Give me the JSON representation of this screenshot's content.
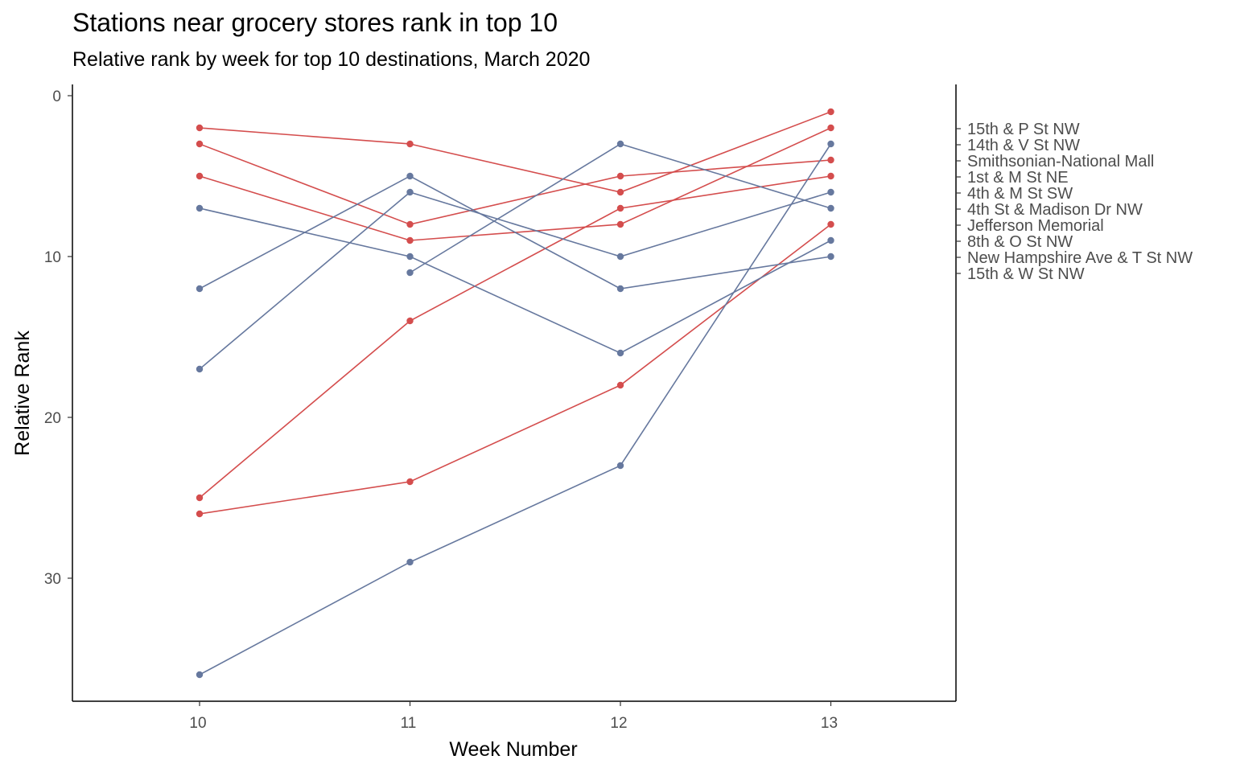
{
  "chart_data": {
    "type": "line",
    "title": "Stations near grocery stores rank in top 10",
    "subtitle": "Relative rank by week for top 10 destinations, March 2020",
    "xlabel": "Week Number",
    "ylabel": "Relative Rank",
    "x": [
      10,
      11,
      12,
      13
    ],
    "x_ticks": [
      "10",
      "11",
      "12",
      "13"
    ],
    "xlim": [
      9.4,
      13.6
    ],
    "y_ticks": [
      "0",
      "10",
      "20",
      "30"
    ],
    "ylim": [
      0,
      37.6
    ],
    "y_reversed": true,
    "grid": false,
    "colors": {
      "grocery": "#d44d4d",
      "other": "#66789e"
    },
    "secondary_axis_labels": [
      "15th & P St NW",
      "14th & V St NW",
      "Smithsonian-National Mall",
      "1st & M St NE",
      "4th & M St SW",
      "4th St & Madison Dr NW",
      "Jefferson Memorial",
      "8th & O St NW",
      "New Hampshire Ave & T St NW",
      "15th & W St NW"
    ],
    "series": [
      {
        "group": "grocery",
        "values": [
          2,
          3,
          6,
          1
        ]
      },
      {
        "group": "grocery",
        "values": [
          3,
          8,
          5,
          4
        ]
      },
      {
        "group": "grocery",
        "values": [
          5,
          9,
          8,
          2
        ]
      },
      {
        "group": "grocery",
        "values": [
          25,
          14,
          7,
          5
        ]
      },
      {
        "group": "grocery",
        "values": [
          26,
          24,
          18,
          8
        ]
      },
      {
        "group": "other",
        "values": [
          7,
          10,
          16,
          9
        ]
      },
      {
        "group": "other",
        "values": [
          12,
          5,
          12,
          10
        ]
      },
      {
        "group": "other",
        "values": [
          17,
          6,
          10,
          6
        ]
      },
      {
        "group": "other",
        "values": [
          null,
          11,
          3,
          7
        ]
      },
      {
        "group": "other",
        "values": [
          36,
          29,
          23,
          3
        ]
      }
    ]
  }
}
